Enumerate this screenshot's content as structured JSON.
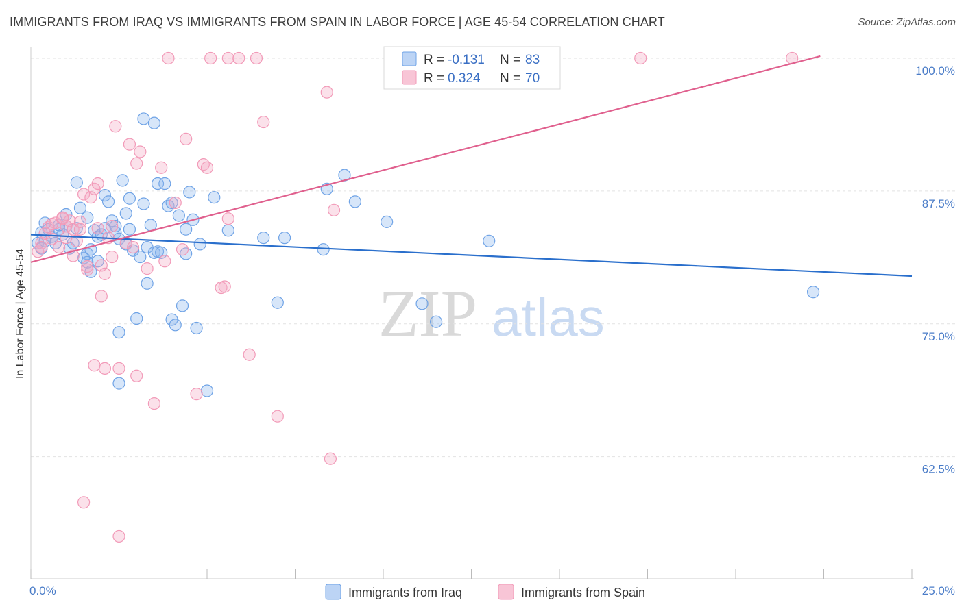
{
  "header": {
    "title": "IMMIGRANTS FROM IRAQ VS IMMIGRANTS FROM SPAIN IN LABOR FORCE | AGE 45-54 CORRELATION CHART",
    "source": "Source: ZipAtlas.com"
  },
  "watermark": {
    "zip": "ZIP",
    "atlas": "atlas"
  },
  "colors": {
    "iraq": "#6fa3e6",
    "iraq_line": "#2a6fcc",
    "spain": "#f29ab8",
    "spain_line": "#e0608e",
    "tick": "#4a7cc8",
    "grid": "#e2e2e2"
  },
  "legend": {
    "rows": [
      {
        "r_label": "R =",
        "r_value": "-0.131",
        "n_label": "N =",
        "n_value": "83"
      },
      {
        "r_label": "R =",
        "r_value": "0.324",
        "n_label": "N =",
        "n_value": "70"
      }
    ]
  },
  "chart_data": {
    "type": "scatter",
    "title": "IMMIGRANTS FROM IRAQ VS IMMIGRANTS FROM SPAIN IN LABOR FORCE | AGE 45-54 CORRELATION CHART",
    "xlabel": "",
    "ylabel": "In Labor Force | Age 45-54",
    "xlim": [
      0,
      25
    ],
    "ylim": [
      51,
      102
    ],
    "y_ticks": [
      {
        "value": 100,
        "label": "100.0%"
      },
      {
        "value": 87.5,
        "label": "87.5%"
      },
      {
        "value": 75,
        "label": "75.0%"
      },
      {
        "value": 62.5,
        "label": "62.5%"
      }
    ],
    "x_tick_labels": {
      "min": "0.0%",
      "max": "25.0%"
    },
    "series": [
      {
        "name": "Immigrants from Iraq",
        "R": -0.131,
        "N": 83,
        "trend": {
          "x": [
            0,
            25
          ],
          "y": [
            83.4,
            79.5
          ]
        },
        "points": [
          [
            0.2,
            82.6
          ],
          [
            0.3,
            83.6
          ],
          [
            0.3,
            82.1
          ],
          [
            0.4,
            84.5
          ],
          [
            0.5,
            83.9
          ],
          [
            0.6,
            83.2
          ],
          [
            0.7,
            82.6
          ],
          [
            0.8,
            83.9
          ],
          [
            0.9,
            83.4
          ],
          [
            1.0,
            85.3
          ],
          [
            1.0,
            84.2
          ],
          [
            1.1,
            82.1
          ],
          [
            1.2,
            82.6
          ],
          [
            1.3,
            84.0
          ],
          [
            1.3,
            88.3
          ],
          [
            1.4,
            85.9
          ],
          [
            1.5,
            81.2
          ],
          [
            1.6,
            81.6
          ],
          [
            1.6,
            80.8
          ],
          [
            1.6,
            85.0
          ],
          [
            1.7,
            79.9
          ],
          [
            1.7,
            82.0
          ],
          [
            1.8,
            83.8
          ],
          [
            1.9,
            83.2
          ],
          [
            2.0,
            83.4
          ],
          [
            2.1,
            84.0
          ],
          [
            2.1,
            87.1
          ],
          [
            2.2,
            86.5
          ],
          [
            2.3,
            84.7
          ],
          [
            2.4,
            83.6
          ],
          [
            2.4,
            84.2
          ],
          [
            2.5,
            83.0
          ],
          [
            2.5,
            69.4
          ],
          [
            2.5,
            74.2
          ],
          [
            2.6,
            88.5
          ],
          [
            2.7,
            82.5
          ],
          [
            2.7,
            85.4
          ],
          [
            2.8,
            83.9
          ],
          [
            2.8,
            86.8
          ],
          [
            2.9,
            81.9
          ],
          [
            3.0,
            75.5
          ],
          [
            3.1,
            81.3
          ],
          [
            3.2,
            86.3
          ],
          [
            3.2,
            94.3
          ],
          [
            3.3,
            78.8
          ],
          [
            3.3,
            82.2
          ],
          [
            3.4,
            84.3
          ],
          [
            3.5,
            93.9
          ],
          [
            3.5,
            81.7
          ],
          [
            3.6,
            81.8
          ],
          [
            3.6,
            88.2
          ],
          [
            3.7,
            81.7
          ],
          [
            3.8,
            88.2
          ],
          [
            3.9,
            86.1
          ],
          [
            4.0,
            86.4
          ],
          [
            4.0,
            75.4
          ],
          [
            4.1,
            74.9
          ],
          [
            4.2,
            85.2
          ],
          [
            4.3,
            76.7
          ],
          [
            4.4,
            83.9
          ],
          [
            4.4,
            81.6
          ],
          [
            4.5,
            87.4
          ],
          [
            4.6,
            84.8
          ],
          [
            4.7,
            74.6
          ],
          [
            4.8,
            82.5
          ],
          [
            5.0,
            68.7
          ],
          [
            5.2,
            86.9
          ],
          [
            5.6,
            83.8
          ],
          [
            6.6,
            83.1
          ],
          [
            7.0,
            77.0
          ],
          [
            7.2,
            83.1
          ],
          [
            8.4,
            87.7
          ],
          [
            8.9,
            89.0
          ],
          [
            9.2,
            86.5
          ],
          [
            10.1,
            84.6
          ],
          [
            11.1,
            76.9
          ],
          [
            11.5,
            75.2
          ],
          [
            13.0,
            82.8
          ],
          [
            22.2,
            78.0
          ],
          [
            8.3,
            82.0
          ],
          [
            0.4,
            82.8
          ],
          [
            0.8,
            84.3
          ],
          [
            1.9,
            80.9
          ]
        ]
      },
      {
        "name": "Immigrants from Spain",
        "R": 0.324,
        "N": 70,
        "trend": {
          "x": [
            0,
            22.4
          ],
          "y": [
            80.8,
            100.2
          ]
        },
        "points": [
          [
            0.2,
            81.8
          ],
          [
            0.3,
            82.6
          ],
          [
            0.4,
            83.5
          ],
          [
            0.5,
            84.1
          ],
          [
            0.6,
            83.0
          ],
          [
            0.7,
            84.5
          ],
          [
            0.8,
            82.2
          ],
          [
            0.9,
            84.9
          ],
          [
            1.0,
            84.2
          ],
          [
            1.0,
            83.1
          ],
          [
            1.1,
            84.7
          ],
          [
            1.2,
            83.9
          ],
          [
            1.2,
            81.4
          ],
          [
            1.3,
            82.8
          ],
          [
            1.4,
            84.6
          ],
          [
            1.4,
            83.9
          ],
          [
            1.5,
            87.2
          ],
          [
            1.6,
            80.4
          ],
          [
            1.7,
            86.9
          ],
          [
            1.8,
            71.1
          ],
          [
            1.8,
            87.7
          ],
          [
            1.9,
            88.2
          ],
          [
            1.9,
            84.0
          ],
          [
            2.0,
            77.6
          ],
          [
            2.0,
            80.5
          ],
          [
            2.1,
            70.8
          ],
          [
            2.1,
            79.7
          ],
          [
            2.2,
            83.1
          ],
          [
            2.3,
            84.2
          ],
          [
            2.3,
            81.3
          ],
          [
            2.4,
            93.6
          ],
          [
            2.5,
            55.0
          ],
          [
            2.5,
            70.8
          ],
          [
            2.8,
            91.9
          ],
          [
            2.9,
            82.2
          ],
          [
            3.0,
            90.1
          ],
          [
            3.0,
            70.1
          ],
          [
            3.1,
            91.2
          ],
          [
            3.3,
            80.2
          ],
          [
            3.5,
            67.5
          ],
          [
            3.7,
            89.7
          ],
          [
            3.8,
            80.9
          ],
          [
            3.9,
            100.0
          ],
          [
            4.1,
            86.4
          ],
          [
            4.3,
            82.0
          ],
          [
            4.4,
            92.4
          ],
          [
            4.7,
            68.4
          ],
          [
            4.9,
            90.0
          ],
          [
            5.0,
            89.7
          ],
          [
            5.1,
            100.0
          ],
          [
            5.4,
            78.4
          ],
          [
            5.5,
            78.5
          ],
          [
            5.6,
            84.9
          ],
          [
            5.6,
            100.0
          ],
          [
            5.9,
            100.0
          ],
          [
            6.2,
            72.1
          ],
          [
            6.4,
            100.0
          ],
          [
            6.6,
            94.0
          ],
          [
            7.0,
            66.3
          ],
          [
            8.4,
            96.8
          ],
          [
            8.5,
            62.3
          ],
          [
            8.6,
            85.7
          ],
          [
            1.5,
            58.2
          ],
          [
            17.3,
            100.0
          ],
          [
            21.6,
            100.0
          ],
          [
            0.3,
            82.2
          ],
          [
            1.6,
            80.1
          ],
          [
            0.9,
            85.0
          ],
          [
            0.6,
            84.4
          ],
          [
            2.7,
            82.6
          ]
        ]
      }
    ],
    "legend_position": "bottom"
  }
}
